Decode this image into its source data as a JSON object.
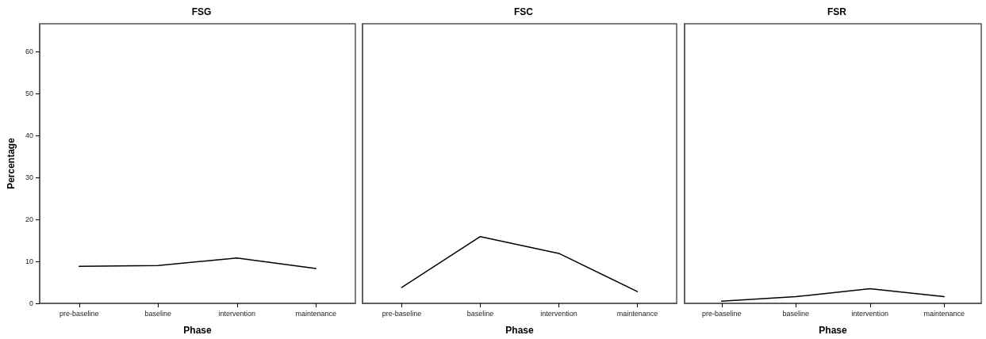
{
  "chart_data": [
    {
      "type": "line",
      "title": "FSG",
      "xlabel": "Phase",
      "ylabel": "Percentage",
      "categories": [
        "pre-baseline",
        "baseline",
        "intervention",
        "maintenance"
      ],
      "series": [
        {
          "color": "#000000",
          "values": [
            8.8,
            9.0,
            10.8,
            8.3
          ]
        }
      ],
      "ylim": [
        0,
        66.6
      ],
      "yticks": [
        0,
        10,
        20,
        30,
        40,
        50,
        60
      ],
      "grid": false,
      "marker": "none",
      "line_style": "solid"
    },
    {
      "type": "line",
      "title": "FSC",
      "xlabel": "Phase",
      "categories": [
        "pre-baseline",
        "baseline",
        "intervention",
        "maintenance"
      ],
      "series": [
        {
          "color": "#000000",
          "values": [
            3.8,
            15.9,
            11.9,
            2.8
          ]
        }
      ],
      "ylim": [
        0,
        66.6
      ],
      "yticks": [
        0,
        10,
        20,
        30,
        40,
        50,
        60
      ],
      "grid": false,
      "marker": "none",
      "line_style": "solid",
      "tick_labels": "x"
    },
    {
      "type": "line",
      "title": "FSR",
      "xlabel": "Phase",
      "categories": [
        "pre-baseline",
        "baseline",
        "intervention",
        "maintenance"
      ],
      "series": [
        {
          "color": "#000000",
          "values": [
            0.5,
            1.6,
            3.5,
            1.6
          ]
        }
      ],
      "ylim": [
        0,
        66.6
      ],
      "yticks": [
        0,
        10,
        20,
        30,
        40,
        50,
        60
      ],
      "grid": false,
      "marker": "none",
      "line_style": "solid",
      "tick_labels": "x"
    }
  ]
}
